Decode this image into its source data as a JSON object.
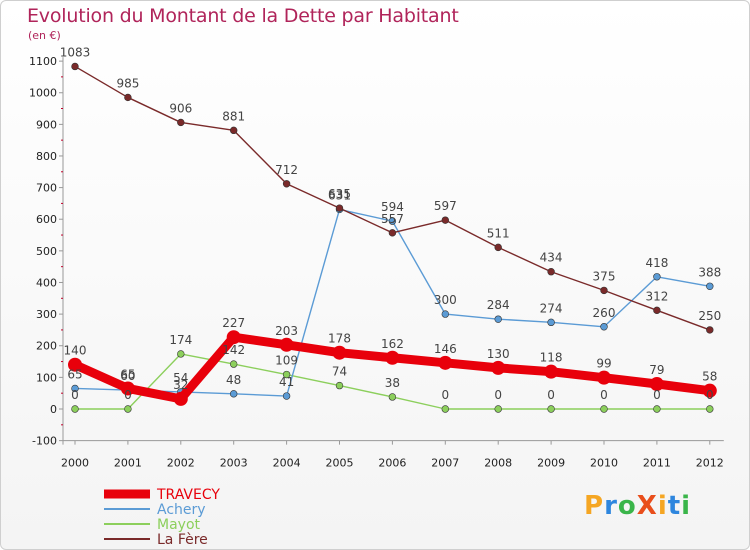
{
  "title": "Evolution du Montant de la Dette par Habitant",
  "unit": "(en €)",
  "logo": {
    "text": "ProXiti",
    "colors": [
      "#f5a623",
      "#2e86de",
      "#3ab54a",
      "#e94e1b",
      "#f5a623",
      "#2e86de",
      "#3ab54a"
    ]
  },
  "chart_data": {
    "type": "line",
    "title": "Evolution du Montant de la Dette par Habitant",
    "ylabel": "(en €)",
    "xlabel": "",
    "x": [
      "2000",
      "2001",
      "2002",
      "2003",
      "2004",
      "2005",
      "2006",
      "2007",
      "2008",
      "2009",
      "2010",
      "2011",
      "2012"
    ],
    "yticks": [
      -100,
      0,
      100,
      200,
      300,
      400,
      500,
      600,
      700,
      800,
      900,
      1000,
      1100
    ],
    "ylim": [
      -100,
      1100
    ],
    "grid": false,
    "legend": "bottom-left",
    "series": [
      {
        "name": "TRAVECY",
        "color": "#e8000b",
        "values": [
          140,
          65,
          32,
          227,
          203,
          178,
          162,
          146,
          130,
          118,
          99,
          79,
          58
        ],
        "labels": [
          "140",
          "65",
          "32",
          "227",
          "203",
          "178",
          "162",
          "146",
          "130",
          "118",
          "99",
          "79",
          "58"
        ]
      },
      {
        "name": "Achery",
        "color": "#5b9bd5",
        "values": [
          65,
          60,
          54,
          48,
          41,
          631,
          594,
          300,
          284,
          274,
          260,
          418,
          388
        ],
        "labels": [
          "65",
          "60",
          "54",
          "48",
          "41",
          "631",
          "594",
          "300",
          "284",
          "274",
          "260",
          "418",
          "388"
        ]
      },
      {
        "name": "Mayot",
        "color": "#8ccf5c",
        "values": [
          0,
          0,
          174,
          142,
          109,
          74,
          38,
          0,
          0,
          0,
          0,
          0,
          0
        ],
        "labels": [
          "0",
          "0",
          "174",
          "142",
          "109",
          "74",
          "38",
          "0",
          "0",
          "0",
          "0",
          "0",
          "0"
        ]
      },
      {
        "name": "La Fère",
        "color": "#7a2a2a",
        "values": [
          1083,
          985,
          906,
          881,
          712,
          635,
          557,
          597,
          511,
          434,
          375,
          312,
          250
        ],
        "labels": [
          "1083",
          "985",
          "906",
          "881",
          "712",
          "635",
          "557",
          "597",
          "511",
          "434",
          "375",
          "312",
          "250"
        ]
      }
    ]
  }
}
